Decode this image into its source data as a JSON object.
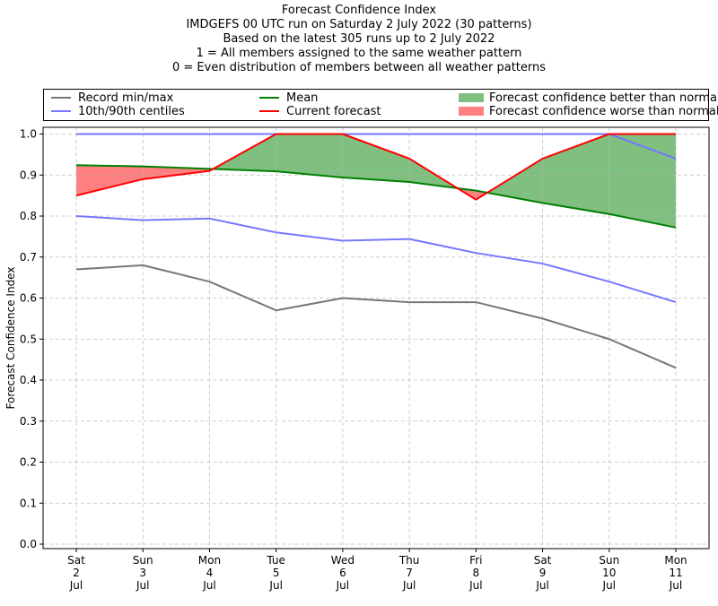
{
  "chart_data": {
    "type": "line",
    "title_lines": [
      "Forecast Confidence Index",
      "IMDGEFS 00 UTC run on Saturday 2 July 2022 (30 patterns)",
      "Based on the latest 305 runs up to 2 July 2022",
      "1 = All members assigned to the same weather pattern",
      "0 = Even distribution of members between all weather patterns"
    ],
    "ylabel": "Forecast Confidence Index",
    "ylim": [
      0,
      1.0
    ],
    "yticks": [
      "0.0",
      "0.1",
      "0.2",
      "0.3",
      "0.4",
      "0.5",
      "0.6",
      "0.7",
      "0.8",
      "0.9",
      "1.0"
    ],
    "categories": [
      [
        "Sat",
        "2",
        "Jul"
      ],
      [
        "Sun",
        "3",
        "Jul"
      ],
      [
        "Mon",
        "4",
        "Jul"
      ],
      [
        "Tue",
        "5",
        "Jul"
      ],
      [
        "Wed",
        "6",
        "Jul"
      ],
      [
        "Thu",
        "7",
        "Jul"
      ],
      [
        "Fri",
        "8",
        "Jul"
      ],
      [
        "Sat",
        "9",
        "Jul"
      ],
      [
        "Sun",
        "10",
        "Jul"
      ],
      [
        "Mon",
        "11",
        "Jul"
      ]
    ],
    "grid": true,
    "legend_position": "top",
    "series": [
      {
        "key": "record_max",
        "name": "Record min/max",
        "color": "#777777",
        "values": [
          1.0,
          1.0,
          1.0,
          1.0,
          1.0,
          1.0,
          1.0,
          1.0,
          1.0,
          1.0
        ]
      },
      {
        "key": "record_min",
        "name": "Record min/max",
        "color": "#777777",
        "values": [
          0.67,
          0.68,
          0.64,
          0.57,
          0.6,
          0.59,
          0.59,
          0.55,
          0.5,
          0.43
        ]
      },
      {
        "key": "p90",
        "name": "10th/90th centiles",
        "color": "#7777ff",
        "values": [
          1.0,
          1.0,
          1.0,
          1.0,
          1.0,
          1.0,
          1.0,
          1.0,
          1.0,
          0.94
        ]
      },
      {
        "key": "p10",
        "name": "10th/90th centiles",
        "color": "#7777ff",
        "values": [
          0.8,
          0.79,
          0.794,
          0.76,
          0.74,
          0.744,
          0.71,
          0.684,
          0.64,
          0.59
        ]
      },
      {
        "key": "mean",
        "name": "Mean",
        "color": "#008000",
        "values": [
          0.924,
          0.921,
          0.915,
          0.909,
          0.894,
          0.883,
          0.862,
          0.832,
          0.805,
          0.772
        ]
      },
      {
        "key": "current",
        "name": "Current forecast",
        "color": "#ff0000",
        "values": [
          0.85,
          0.89,
          0.91,
          1.0,
          1.0,
          0.94,
          0.84,
          0.94,
          1.0,
          1.0
        ]
      }
    ],
    "fill_better": {
      "name": "Forecast confidence better than normal",
      "color": "#7fbf7f"
    },
    "fill_worse": {
      "name": "Forecast confidence worse than normal",
      "color": "#ff8080"
    }
  }
}
